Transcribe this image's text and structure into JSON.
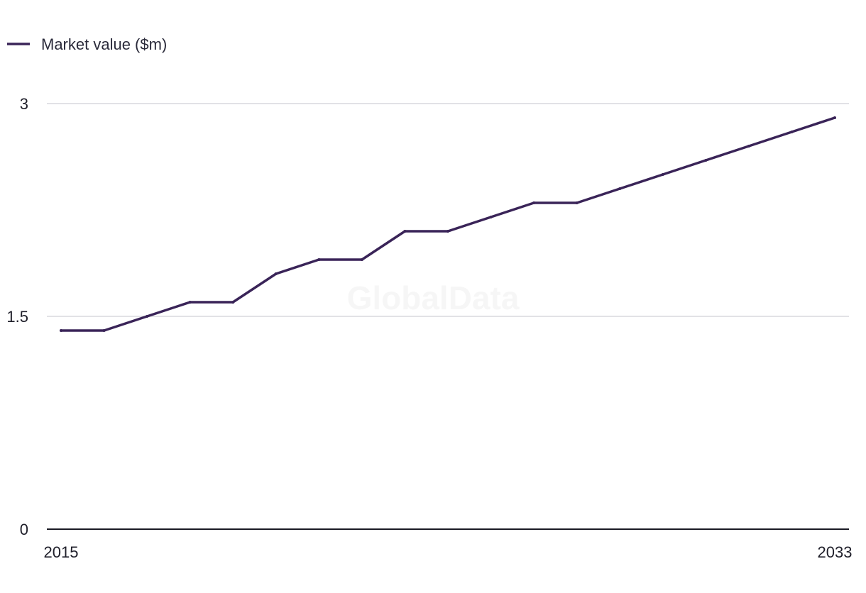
{
  "watermark": "GlobalData",
  "chart_data": {
    "type": "line",
    "title": "",
    "xlabel": "",
    "ylabel": "",
    "x": [
      2015,
      2016,
      2017,
      2018,
      2019,
      2020,
      2021,
      2022,
      2023,
      2024,
      2025,
      2026,
      2027,
      2028,
      2029,
      2030,
      2031,
      2032,
      2033
    ],
    "series": [
      {
        "name": "Market value ($m)",
        "color": "#3a2458",
        "values": [
          1.4,
          1.4,
          1.5,
          1.6,
          1.6,
          1.8,
          1.9,
          1.9,
          2.1,
          2.1,
          2.2,
          2.3,
          2.3,
          2.4,
          2.5,
          2.6,
          2.7,
          2.8,
          2.9
        ]
      }
    ],
    "ylim": [
      0,
      3
    ],
    "y_ticks": [
      "0",
      "1.5",
      "3"
    ],
    "x_tick_labels": [
      "2015",
      "2033"
    ],
    "grid": true,
    "legend_position": "top-left"
  }
}
